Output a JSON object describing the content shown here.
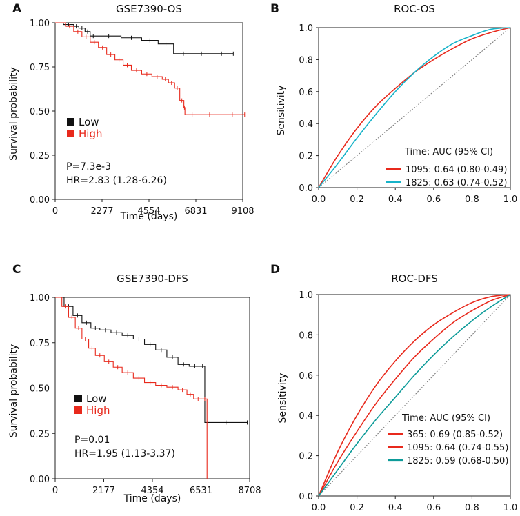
{
  "colors": {
    "low": "#111111",
    "high": "#e8291c",
    "red": "#e8291c",
    "cyan": "#17b3c9",
    "teal": "#0d9b99",
    "diag": "#777777"
  },
  "chart_data": [
    {
      "panel": "A",
      "type": "line",
      "subtype": "kaplan-meier",
      "title": "GSE7390-OS",
      "xlabel": "Time (days)",
      "ylabel": "Survival probability",
      "xlim": [
        0,
        9108
      ],
      "ylim": [
        0,
        1
      ],
      "xticks": [
        0,
        2277,
        4554,
        6831,
        9108
      ],
      "yticks": [
        0,
        0.25,
        0.5,
        0.75,
        1.0
      ],
      "ytick_labels": [
        "0.00",
        "0.25",
        "0.50",
        "0.75",
        "1.00"
      ],
      "legend": [
        "Low",
        "High"
      ],
      "stats": [
        "P=7.3e-3",
        "HR=2.83 (1.28-6.26)"
      ],
      "series": [
        {
          "name": "Low",
          "color": "low",
          "x": [
            0,
            400,
            900,
            1150,
            1450,
            1700,
            2000,
            3200,
            4200,
            5000,
            5750,
            6700,
            7500,
            8650
          ],
          "y": [
            1.0,
            0.99,
            0.98,
            0.97,
            0.95,
            0.925,
            0.925,
            0.915,
            0.9,
            0.88,
            0.825,
            0.825,
            0.825,
            0.825
          ]
        },
        {
          "name": "High",
          "color": "high",
          "x": [
            0,
            500,
            900,
            1300,
            1700,
            2100,
            2500,
            2900,
            3300,
            3700,
            4200,
            4700,
            5200,
            5500,
            5800,
            6050,
            6250,
            6300,
            7000,
            8000,
            9200
          ],
          "y": [
            1.0,
            0.98,
            0.95,
            0.92,
            0.89,
            0.86,
            0.82,
            0.79,
            0.76,
            0.73,
            0.71,
            0.695,
            0.68,
            0.66,
            0.63,
            0.56,
            0.52,
            0.48,
            0.48,
            0.48,
            0.48
          ]
        }
      ]
    },
    {
      "panel": "B",
      "type": "line",
      "subtype": "roc",
      "title": "ROC-OS",
      "xlabel": "",
      "ylabel": "Sensitivity",
      "xlim": [
        0,
        1
      ],
      "ylim": [
        0,
        1
      ],
      "xticks": [
        0,
        0.2,
        0.4,
        0.6,
        0.8,
        1.0
      ],
      "xtick_labels": [
        "0.0",
        "0.2",
        "0.4",
        "0.6",
        "0.8",
        "1.0"
      ],
      "yticks": [
        0,
        0.2,
        0.4,
        0.6,
        0.8,
        1.0
      ],
      "ytick_labels": [
        "0.0",
        "0.2",
        "0.4",
        "0.6",
        "0.8",
        "1.0"
      ],
      "legend_title": "Time: AUC (95% CI)",
      "series": [
        {
          "name": "1095: 0.64 (0.80-0.49)",
          "color": "red",
          "x": [
            0,
            0.1,
            0.2,
            0.3,
            0.4,
            0.5,
            0.6,
            0.7,
            0.8,
            0.9,
            1.0
          ],
          "y": [
            0,
            0.2,
            0.37,
            0.51,
            0.62,
            0.72,
            0.8,
            0.87,
            0.93,
            0.97,
            1.0
          ]
        },
        {
          "name": "1825: 0.63 (0.74-0.52)",
          "color": "cyan",
          "x": [
            0,
            0.1,
            0.2,
            0.3,
            0.4,
            0.5,
            0.6,
            0.7,
            0.8,
            0.9,
            1.0
          ],
          "y": [
            0,
            0.15,
            0.31,
            0.46,
            0.6,
            0.72,
            0.82,
            0.9,
            0.95,
            0.99,
            1.0
          ]
        }
      ]
    },
    {
      "panel": "C",
      "type": "line",
      "subtype": "kaplan-meier",
      "title": "GSE7390-DFS",
      "xlabel": "Time (days)",
      "ylabel": "Survival probability",
      "xlim": [
        0,
        8708
      ],
      "ylim": [
        0,
        1
      ],
      "xticks": [
        0,
        2177,
        4354,
        6531,
        8708
      ],
      "yticks": [
        0,
        0.25,
        0.5,
        0.75,
        1.0
      ],
      "ytick_labels": [
        "0.00",
        "0.25",
        "0.50",
        "0.75",
        "1.00"
      ],
      "legend": [
        "Low",
        "High"
      ],
      "stats": [
        "P=0.01",
        "HR=1.95 (1.13-3.37)"
      ],
      "series": [
        {
          "name": "Low",
          "color": "low",
          "x": [
            0,
            400,
            800,
            1200,
            1600,
            2000,
            2500,
            3000,
            3500,
            4000,
            4500,
            5000,
            5500,
            6000,
            6500,
            6700,
            6700,
            8600
          ],
          "y": [
            1.0,
            0.95,
            0.9,
            0.86,
            0.83,
            0.82,
            0.805,
            0.79,
            0.77,
            0.74,
            0.71,
            0.67,
            0.63,
            0.62,
            0.62,
            0.62,
            0.31,
            0.31
          ]
        },
        {
          "name": "High",
          "color": "high",
          "x": [
            0,
            300,
            600,
            900,
            1200,
            1500,
            1800,
            2200,
            2600,
            3000,
            3500,
            4000,
            4500,
            5000,
            5500,
            5900,
            6200,
            6600,
            6600,
            6800
          ],
          "y": [
            1.0,
            0.95,
            0.89,
            0.83,
            0.77,
            0.72,
            0.68,
            0.645,
            0.615,
            0.585,
            0.555,
            0.53,
            0.515,
            0.505,
            0.49,
            0.465,
            0.44,
            0.44,
            0.44,
            0.0
          ]
        }
      ]
    },
    {
      "panel": "D",
      "type": "line",
      "subtype": "roc",
      "title": "ROC-DFS",
      "xlabel": "",
      "ylabel": "Sensitivity",
      "xlim": [
        0,
        1
      ],
      "ylim": [
        0,
        1
      ],
      "xticks": [
        0,
        0.2,
        0.4,
        0.6,
        0.8,
        1.0
      ],
      "xtick_labels": [
        "0.0",
        "0.2",
        "0.4",
        "0.6",
        "0.8",
        "1.0"
      ],
      "yticks": [
        0,
        0.2,
        0.4,
        0.6,
        0.8,
        1.0
      ],
      "ytick_labels": [
        "0.0",
        "0.2",
        "0.4",
        "0.6",
        "0.8",
        "1.0"
      ],
      "legend_title": "Time: AUC (95% CI)",
      "series": [
        {
          "name": "365: 0.69 (0.85-0.52)",
          "color": "red",
          "x": [
            0,
            0.1,
            0.2,
            0.3,
            0.4,
            0.5,
            0.6,
            0.7,
            0.8,
            0.9,
            1.0
          ],
          "y": [
            0,
            0.22,
            0.4,
            0.55,
            0.67,
            0.77,
            0.85,
            0.91,
            0.96,
            0.99,
            1.0
          ]
        },
        {
          "name": "1095: 0.64 (0.74-0.55)",
          "color": "red",
          "x": [
            0,
            0.1,
            0.2,
            0.3,
            0.4,
            0.5,
            0.6,
            0.7,
            0.8,
            0.9,
            1.0
          ],
          "y": [
            0,
            0.17,
            0.32,
            0.46,
            0.58,
            0.69,
            0.78,
            0.86,
            0.92,
            0.97,
            1.0
          ]
        },
        {
          "name": "1825: 0.59 (0.68-0.50)",
          "color": "teal",
          "x": [
            0,
            0.1,
            0.2,
            0.3,
            0.4,
            0.5,
            0.6,
            0.7,
            0.8,
            0.9,
            1.0
          ],
          "y": [
            0,
            0.13,
            0.26,
            0.38,
            0.49,
            0.6,
            0.7,
            0.79,
            0.87,
            0.94,
            1.0
          ]
        }
      ]
    }
  ]
}
